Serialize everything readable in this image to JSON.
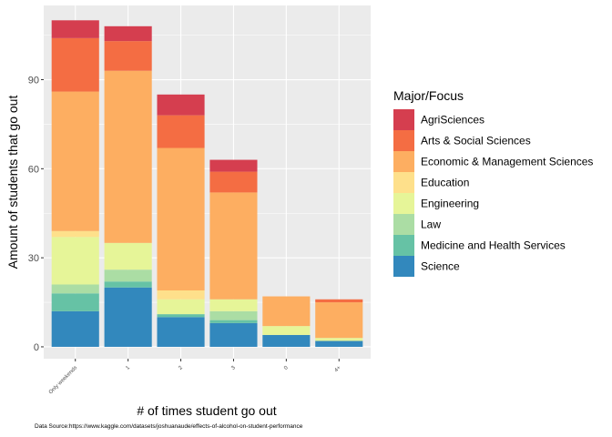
{
  "chart_data": {
    "type": "bar",
    "stacked": true,
    "xlabel": "# of times student go out",
    "ylabel": "Amount of students that go out",
    "ylim": [
      -4,
      115
    ],
    "yticks": [
      0,
      30,
      60,
      90
    ],
    "grid": true,
    "legend_placement": "right",
    "legend_title": "Major/Focus",
    "categories": [
      "Only weekends",
      "1",
      "2",
      "3",
      "0",
      "4+"
    ],
    "series": [
      {
        "name": "Science",
        "color": "#3288bd",
        "values": [
          12,
          20,
          10,
          8,
          4,
          2
        ]
      },
      {
        "name": "Medicine and Health Services",
        "color": "#66c2a5",
        "values": [
          6,
          2,
          1,
          1,
          0,
          0
        ]
      },
      {
        "name": "Law",
        "color": "#abdda4",
        "values": [
          3,
          4,
          0,
          3,
          0,
          0
        ]
      },
      {
        "name": "Engineering",
        "color": "#e6f598",
        "values": [
          16,
          9,
          5,
          4,
          3,
          1
        ]
      },
      {
        "name": "Education",
        "color": "#fee08b",
        "values": [
          2,
          0,
          3,
          0,
          0,
          0
        ]
      },
      {
        "name": "Economic & Management Sciences",
        "color": "#fdae61",
        "values": [
          47,
          58,
          48,
          36,
          10,
          12
        ]
      },
      {
        "name": "Arts & Social Sciences",
        "color": "#f46d43",
        "values": [
          18,
          10,
          11,
          7,
          0,
          1
        ]
      },
      {
        "name": "AgriSciences",
        "color": "#d53e4f",
        "values": [
          6,
          5,
          7,
          4,
          0,
          0
        ]
      }
    ],
    "legend_order": [
      "AgriSciences",
      "Arts & Social Sciences",
      "Economic & Management Sciences",
      "Education",
      "Engineering",
      "Law",
      "Medicine and Health Services",
      "Science"
    ],
    "caption": "Data Source:https://www.kaggle.com/datasets/joshuanaude/effects-of-alcohol-on-student-performance"
  }
}
